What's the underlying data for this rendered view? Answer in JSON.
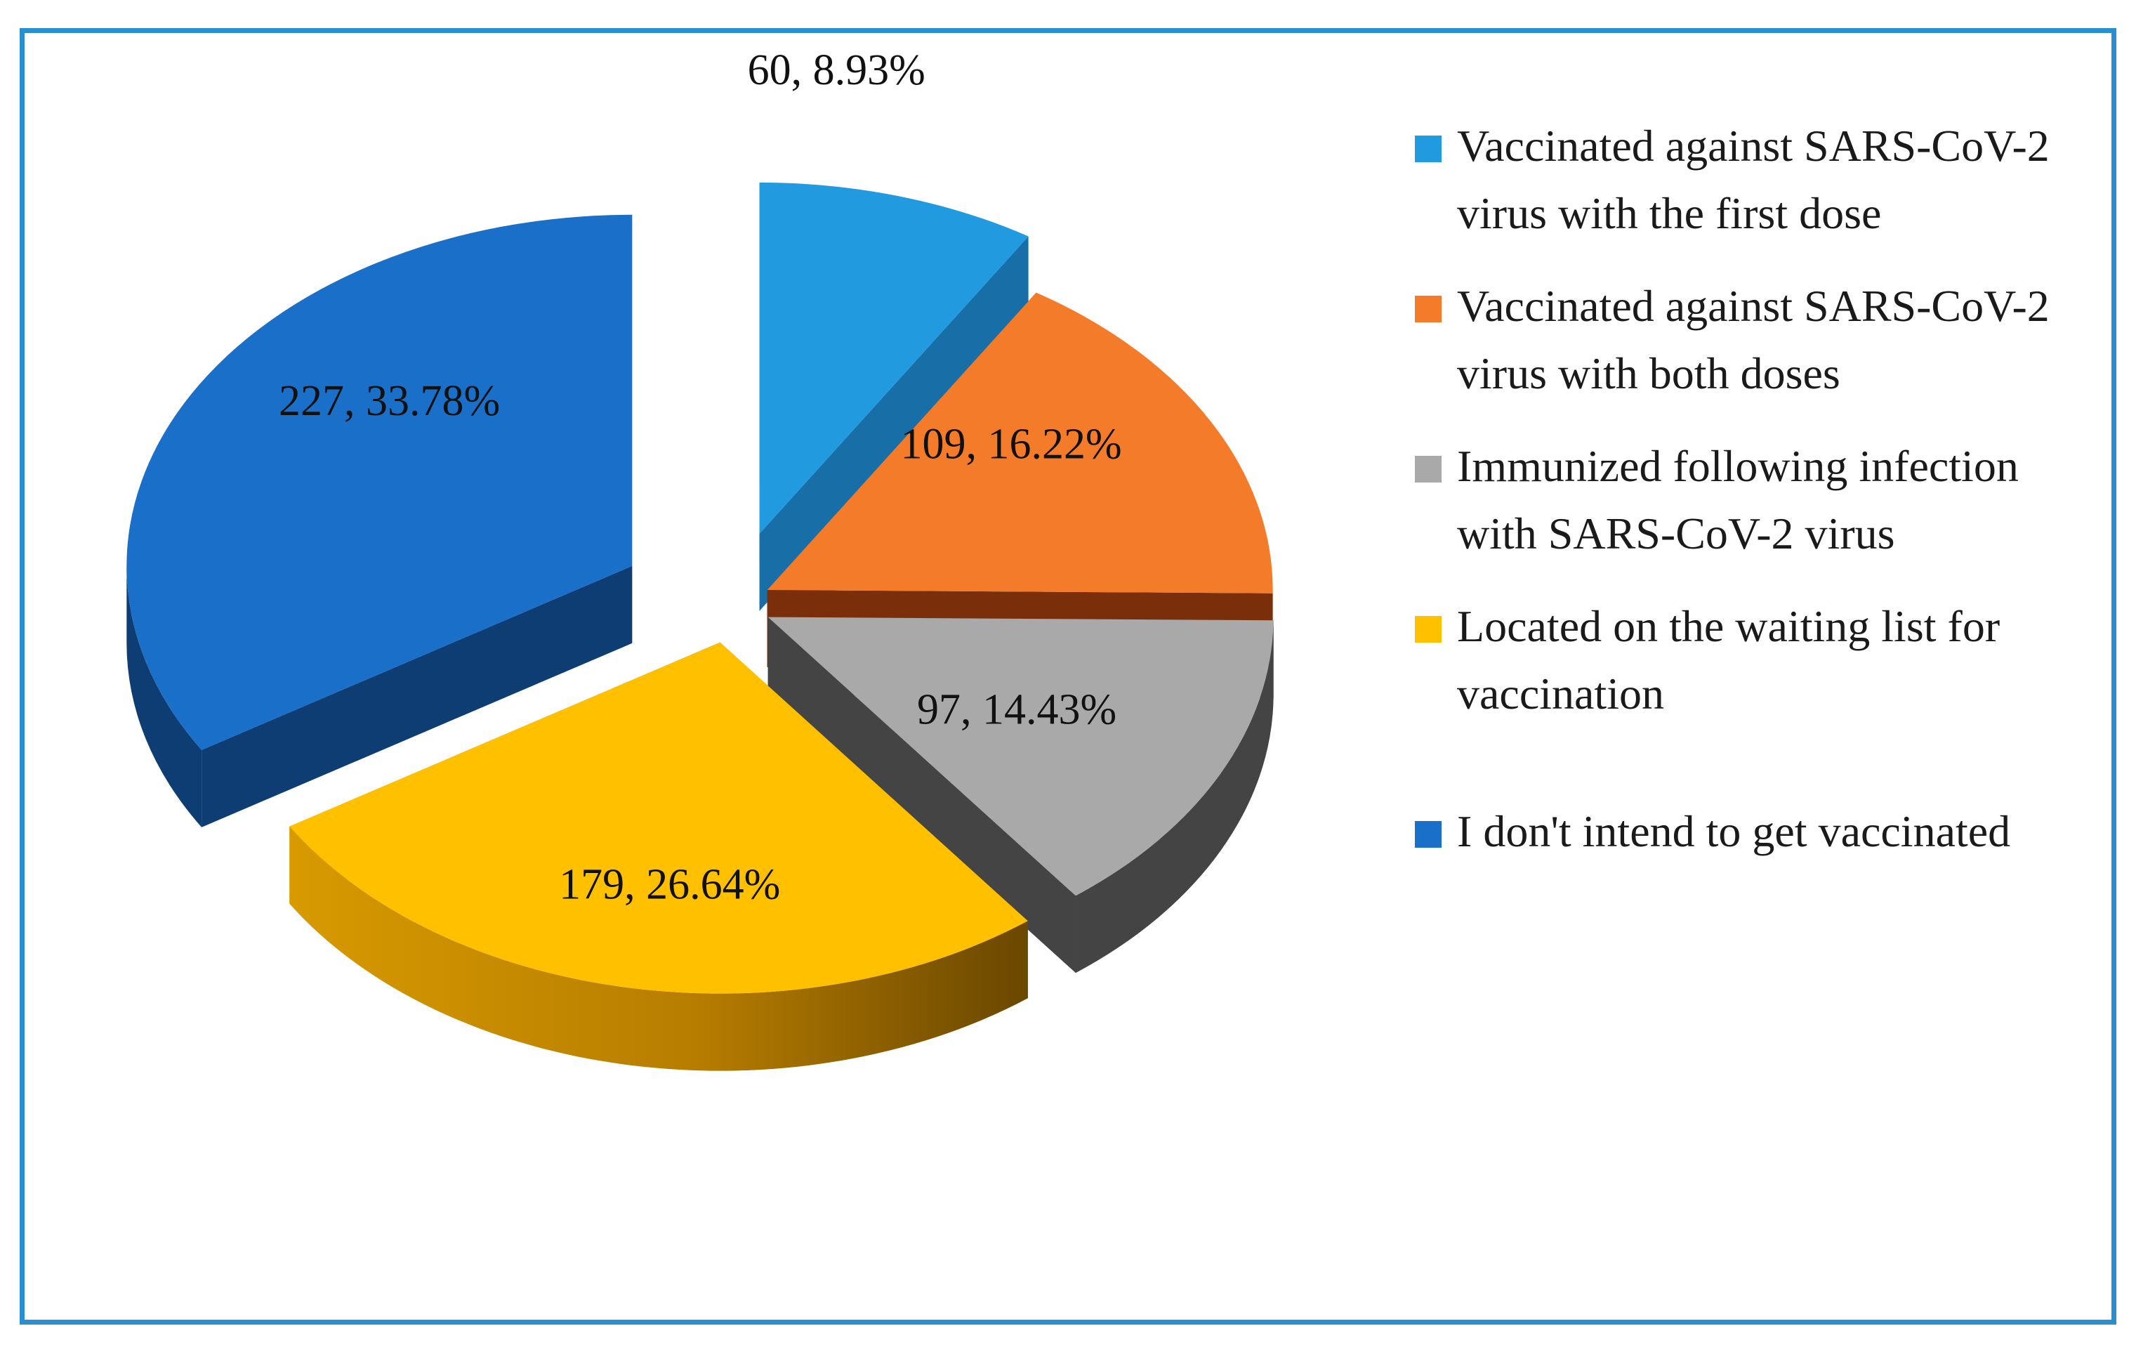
{
  "chart_data": {
    "type": "pie",
    "title": "",
    "style": "3d-exploded",
    "slices": [
      {
        "name": "Vaccinated against SARS-CoV-2 virus with the first dose",
        "value": 60,
        "percent": 8.93,
        "label": "60, 8.93%",
        "color": "#229adf"
      },
      {
        "name": "Vaccinated against SARS-CoV-2 virus with both doses",
        "value": 109,
        "percent": 16.22,
        "label": "109, 16.22%",
        "color": "#f47b29"
      },
      {
        "name": "Immunized following infection with SARS-CoV-2 virus",
        "value": 97,
        "percent": 14.43,
        "label": "97, 14.43%",
        "color": "#a9a9a9"
      },
      {
        "name": "Located on the waiting list for vaccination",
        "value": 179,
        "percent": 26.64,
        "label": "179, 26.64%",
        "color": "#ffc000"
      },
      {
        "name": "I don't intend to get vaccinated",
        "value": 227,
        "percent": 33.78,
        "label": "227, 33.78%",
        "color": "#1a6fc9"
      }
    ],
    "legend": {
      "position": "right",
      "entries": [
        "Vaccinated against SARS-CoV-2 virus with the first dose",
        "Vaccinated against SARS-CoV-2 virus with both doses",
        "Immunized following infection with SARS-CoV-2 virus",
        "Located on the waiting list for vaccination",
        "I don't intend to get vaccinated"
      ]
    }
  }
}
